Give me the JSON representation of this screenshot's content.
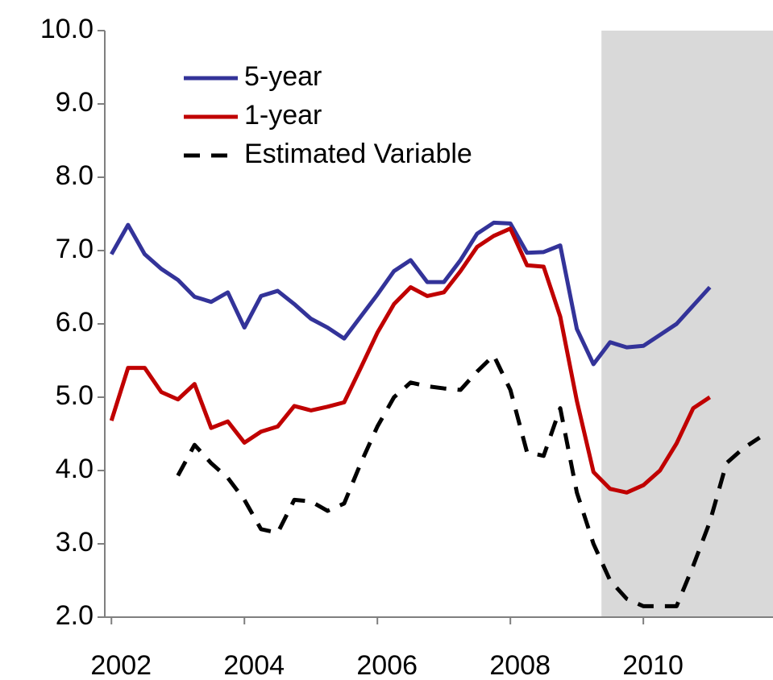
{
  "chart_data": {
    "type": "line",
    "x": [
      2002,
      2002.25,
      2002.5,
      2002.75,
      2003,
      2003.25,
      2003.5,
      2003.75,
      2004,
      2004.25,
      2004.5,
      2004.75,
      2005,
      2005.25,
      2005.5,
      2005.75,
      2006,
      2006.25,
      2006.5,
      2006.75,
      2007,
      2007.25,
      2007.5,
      2007.75,
      2008,
      2008.25,
      2008.5,
      2008.75,
      2009,
      2009.25,
      2009.5,
      2009.75,
      2010,
      2010.25,
      2010.5,
      2010.75,
      2011,
      2011.25,
      2011.5,
      2011.75
    ],
    "series": [
      {
        "name": "5-year",
        "color": "#333399",
        "dash": false,
        "values": [
          6.95,
          7.35,
          6.95,
          6.75,
          6.6,
          6.37,
          6.3,
          6.43,
          5.95,
          6.38,
          6.45,
          6.27,
          6.07,
          5.95,
          5.8,
          6.1,
          6.4,
          6.72,
          6.87,
          6.57,
          6.57,
          6.87,
          7.23,
          7.38,
          7.37,
          6.97,
          6.98,
          7.07,
          5.93,
          5.45,
          5.75,
          5.68,
          5.7,
          5.85,
          6.0,
          6.25,
          6.5,
          null,
          null,
          null
        ]
      },
      {
        "name": "1-year",
        "color": "#c00000",
        "dash": false,
        "values": [
          4.68,
          5.4,
          5.4,
          5.07,
          4.97,
          5.18,
          4.58,
          4.67,
          4.38,
          4.53,
          4.6,
          4.88,
          4.82,
          4.87,
          4.93,
          5.4,
          5.88,
          6.27,
          6.5,
          6.38,
          6.43,
          6.72,
          7.05,
          7.2,
          7.3,
          6.8,
          6.78,
          6.1,
          4.95,
          3.98,
          3.75,
          3.7,
          3.8,
          4.0,
          4.37,
          4.85,
          5.0,
          null,
          null,
          null
        ]
      },
      {
        "name": "Estimated Variable",
        "color": "#000000",
        "dash": true,
        "values": [
          null,
          null,
          null,
          null,
          3.93,
          4.35,
          4.1,
          3.9,
          3.6,
          3.2,
          3.15,
          3.6,
          3.58,
          3.45,
          3.55,
          4.1,
          4.6,
          5.0,
          5.2,
          5.15,
          5.12,
          5.1,
          5.35,
          5.57,
          5.1,
          4.25,
          4.2,
          4.85,
          3.7,
          3.0,
          2.5,
          2.25,
          2.15,
          2.15,
          2.15,
          2.7,
          3.3,
          4.1,
          4.3,
          4.45
        ]
      }
    ],
    "shaded_region": [
      2009.37,
      2011.95
    ],
    "xlim": [
      2001.9,
      2011.95
    ],
    "xticks": [
      2002,
      2004,
      2006,
      2008,
      2010
    ],
    "ylim": [
      2,
      10
    ],
    "yticks": [
      {
        "value": 2,
        "label": "2.0"
      },
      {
        "value": 3,
        "label": "3.0"
      },
      {
        "value": 4,
        "label": "4.0"
      },
      {
        "value": 5,
        "label": "5.0"
      },
      {
        "value": 6,
        "label": "6.0"
      },
      {
        "value": 7,
        "label": "7.0"
      },
      {
        "value": 8,
        "label": "8.0"
      },
      {
        "value": 9,
        "label": "9.0"
      },
      {
        "value": 10,
        "label": "10.0"
      }
    ],
    "legend": "top-left"
  }
}
